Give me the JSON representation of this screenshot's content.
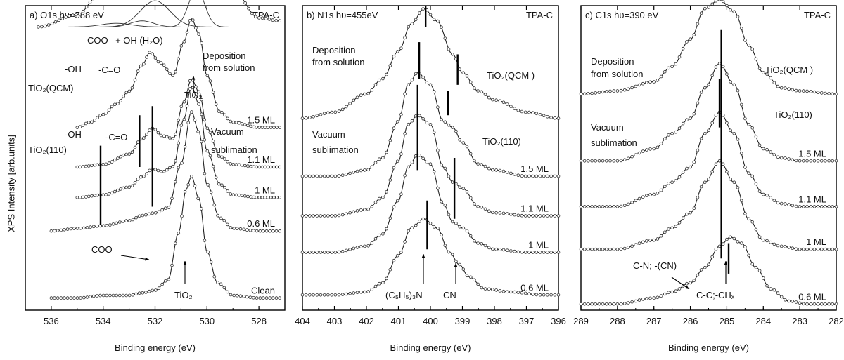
{
  "figure": {
    "ylabel": "XPS Intensity [arb.units]"
  },
  "chart_data": [
    {
      "type": "line",
      "panel_label": "a) O1s hυ=588 eV",
      "sample": "TPA-C",
      "xlabel": "Binding energy (eV)",
      "xlim": [
        537,
        527
      ],
      "xticks": [
        "536",
        "534",
        "532",
        "530",
        "528"
      ],
      "grid": false,
      "series": [
        {
          "name": "TiO2(QCM)",
          "label": "TiO2(QCM)",
          "offset": 0.93,
          "scale": 1.0,
          "x": [
            536.5,
            535,
            534.2,
            533.5,
            533.0,
            532.5,
            532.0,
            531.5,
            531.0,
            530.6,
            530.3,
            530.0,
            529.6,
            529.0,
            528.0,
            527.2
          ],
          "y": [
            0.0,
            0.04,
            0.1,
            0.18,
            0.27,
            0.37,
            0.44,
            0.45,
            0.5,
            0.64,
            0.66,
            0.58,
            0.38,
            0.12,
            0.03,
            0.02
          ]
        },
        {
          "name": "1.5 ML",
          "label": "1.5 ML",
          "offset": 0.6,
          "scale": 0.85,
          "x": [
            535.0,
            534.5,
            534.0,
            533.5,
            533.0,
            532.5,
            532.2,
            531.8,
            531.3,
            530.9,
            530.6,
            530.3,
            530.0,
            529.5,
            529.0,
            528.0,
            527.2
          ],
          "y": [
            0.0,
            0.02,
            0.05,
            0.09,
            0.14,
            0.24,
            0.29,
            0.25,
            0.2,
            0.33,
            0.42,
            0.36,
            0.2,
            0.06,
            0.02,
            0.0,
            0.0
          ]
        },
        {
          "name": "1.1 ML",
          "label": "1.1 ML",
          "offset": 0.47,
          "scale": 0.85,
          "x": [
            535.0,
            534.0,
            533.0,
            532.5,
            532.1,
            531.7,
            531.3,
            530.9,
            530.6,
            530.3,
            530.0,
            529.5,
            529.0,
            528.0,
            527.2
          ],
          "y": [
            0.0,
            0.01,
            0.05,
            0.11,
            0.15,
            0.12,
            0.11,
            0.25,
            0.34,
            0.29,
            0.15,
            0.04,
            0.01,
            0.0,
            0.0
          ]
        },
        {
          "name": "1 ML",
          "label": "1 ML",
          "offset": 0.37,
          "scale": 0.85,
          "x": [
            535.0,
            534.0,
            533.0,
            532.5,
            532.1,
            531.7,
            531.3,
            530.9,
            530.6,
            530.3,
            530.0,
            529.5,
            529.0,
            528.0,
            527.2
          ],
          "y": [
            0.0,
            0.01,
            0.04,
            0.08,
            0.11,
            0.1,
            0.12,
            0.3,
            0.43,
            0.36,
            0.18,
            0.05,
            0.01,
            0.0,
            0.0
          ]
        },
        {
          "name": "0.6 ML",
          "label": "0.6 ML",
          "offset": 0.26,
          "scale": 0.85,
          "x": [
            536.0,
            535.0,
            534.0,
            533.0,
            532.5,
            532.0,
            531.5,
            531.0,
            530.6,
            530.3,
            530.0,
            529.5,
            529.0,
            528.0,
            527.2
          ],
          "y": [
            0.0,
            0.01,
            0.02,
            0.04,
            0.06,
            0.07,
            0.09,
            0.26,
            0.46,
            0.38,
            0.18,
            0.05,
            0.01,
            0.0,
            0.0
          ]
        },
        {
          "name": "Clean",
          "label": "Clean",
          "offset": 0.04,
          "scale": 0.85,
          "x": [
            536.0,
            535.0,
            534.0,
            533.0,
            532.5,
            532.0,
            531.5,
            531.1,
            530.8,
            530.6,
            530.3,
            530.0,
            529.6,
            529.0,
            528.0,
            527.2
          ],
          "y": [
            0.0,
            0.0,
            0.01,
            0.01,
            0.02,
            0.03,
            0.07,
            0.25,
            0.42,
            0.47,
            0.38,
            0.18,
            0.06,
            0.01,
            0.0,
            0.0
          ]
        }
      ],
      "components": [
        {
          "name": "TiO2",
          "center": 530.4,
          "height": 0.62,
          "width": 0.7
        },
        {
          "name": "COO- + OH (H2O)",
          "center": 532.0,
          "height": 0.43,
          "width": 1.3
        },
        {
          "name": "-C=O",
          "center": 532.5,
          "height": 0.1,
          "width": 1.0
        },
        {
          "name": "-OH",
          "center": 533.5,
          "height": 0.06,
          "width": 1.3
        }
      ],
      "vlines": [
        534.1,
        532.6,
        532.1
      ],
      "annotations": [
        "Deposition from solution",
        "COO⁻ + OH (H₂O)",
        "-OH",
        "-C=O",
        "TiO₂(QCM)",
        "TiO₂",
        "-OH",
        "-C=O",
        "TiO₂(110)",
        "Vacuum sublimation",
        "COO⁻",
        "TiO₂"
      ]
    },
    {
      "type": "line",
      "panel_label": "b) N1s hυ=455eV",
      "sample": "TPA-C",
      "xlabel": "Binding energy (eV)",
      "xlim": [
        404,
        396
      ],
      "xticks": [
        "404",
        "403",
        "402",
        "401",
        "400",
        "399",
        "398",
        "397",
        "396"
      ],
      "grid": false,
      "series": [
        {
          "name": "TiO2(QCM )",
          "label": "TiO₂(QCM )",
          "offset": 0.63,
          "scale": 1.0,
          "x": [
            404,
            403,
            402,
            401.5,
            401.0,
            400.6,
            400.2,
            399.8,
            399.3,
            399.0,
            398.5,
            398.0,
            397.0,
            396.0
          ],
          "y": [
            0.0,
            0.02,
            0.08,
            0.13,
            0.22,
            0.31,
            0.36,
            0.32,
            0.21,
            0.15,
            0.09,
            0.06,
            0.02,
            0.0
          ]
        },
        {
          "name": "1.5 ML",
          "label": "1.5 ML",
          "offset": 0.44,
          "scale": 1.0,
          "x": [
            404,
            403,
            402,
            401.5,
            401.0,
            400.7,
            400.4,
            400.0,
            399.6,
            399.3,
            399.0,
            398.5,
            398.0,
            397.0,
            396.0
          ],
          "y": [
            0.0,
            0.0,
            0.02,
            0.06,
            0.18,
            0.3,
            0.34,
            0.3,
            0.18,
            0.16,
            0.11,
            0.04,
            0.02,
            0.0,
            0.0
          ]
        },
        {
          "name": "1.1 ML",
          "label": "1.1 ML",
          "offset": 0.31,
          "scale": 1.0,
          "x": [
            404,
            403,
            402,
            401.5,
            401.0,
            400.7,
            400.4,
            400.0,
            399.6,
            399.3,
            399.0,
            398.5,
            398.0,
            397.0,
            396.0
          ],
          "y": [
            0.0,
            0.0,
            0.02,
            0.06,
            0.18,
            0.3,
            0.33,
            0.3,
            0.16,
            0.11,
            0.09,
            0.03,
            0.01,
            0.0,
            0.0
          ]
        },
        {
          "name": "1 ML",
          "label": "1 ML",
          "offset": 0.19,
          "scale": 1.0,
          "x": [
            404,
            403,
            402,
            401.5,
            401.0,
            400.7,
            400.4,
            400.0,
            399.6,
            399.3,
            399.0,
            398.5,
            398.0,
            397.0,
            396.0
          ],
          "y": [
            0.0,
            0.0,
            0.02,
            0.06,
            0.17,
            0.28,
            0.32,
            0.29,
            0.16,
            0.1,
            0.08,
            0.03,
            0.01,
            0.0,
            0.0
          ]
        },
        {
          "name": "0.6 ML",
          "label": "0.6 ML",
          "offset": 0.05,
          "scale": 1.0,
          "x": [
            404,
            403,
            402,
            401.5,
            401.0,
            400.6,
            400.2,
            399.8,
            399.4,
            399.1,
            398.8,
            398.3,
            397.5,
            396.5,
            396.0
          ],
          "y": [
            0.0,
            0.0,
            0.01,
            0.04,
            0.13,
            0.22,
            0.25,
            0.22,
            0.14,
            0.1,
            0.06,
            0.02,
            0.01,
            0.0,
            0.0
          ]
        }
      ],
      "vlines": [
        400.1,
        399.1,
        400.3,
        399.4,
        399.2
      ],
      "annotations": [
        "Deposition from solution",
        "TiO₂(QCM )",
        "Vacuum sublimation",
        "TiO₂(110)",
        "(C₅H₅)₃N",
        "CN"
      ]
    },
    {
      "type": "line",
      "panel_label": "c) C1s hυ=390 eV",
      "sample": "TPA-C",
      "xlabel": "Binding energy (eV)",
      "xlim": [
        289,
        282
      ],
      "xticks": [
        "289",
        "288",
        "287",
        "286",
        "285",
        "284",
        "283",
        "282"
      ],
      "grid": false,
      "series": [
        {
          "name": "TiO2(QCM )",
          "label": "TiO₂(QCM )",
          "offset": 0.71,
          "scale": 1.0,
          "x": [
            289.0,
            288.0,
            287.0,
            286.5,
            286.0,
            285.6,
            285.2,
            284.8,
            284.4,
            284.0,
            283.5,
            283.0,
            282.0
          ],
          "y": [
            0.0,
            0.01,
            0.04,
            0.09,
            0.18,
            0.28,
            0.31,
            0.27,
            0.16,
            0.07,
            0.02,
            0.01,
            0.0
          ]
        },
        {
          "name": "1.5 ML",
          "label": "1.5 ML",
          "offset": 0.49,
          "scale": 1.0,
          "x": [
            289.0,
            288.0,
            287.0,
            286.5,
            286.0,
            285.6,
            285.2,
            284.8,
            284.4,
            284.0,
            283.5,
            283.0,
            282.0
          ],
          "y": [
            0.0,
            0.0,
            0.04,
            0.09,
            0.14,
            0.24,
            0.32,
            0.25,
            0.12,
            0.04,
            0.01,
            0.0,
            0.0
          ]
        },
        {
          "name": "1.1 ML",
          "label": "1.1 ML",
          "offset": 0.34,
          "scale": 1.0,
          "x": [
            289.0,
            288.0,
            287.0,
            286.5,
            286.0,
            285.6,
            285.2,
            284.8,
            284.4,
            284.0,
            283.5,
            283.0,
            282.0
          ],
          "y": [
            0.0,
            0.0,
            0.04,
            0.08,
            0.13,
            0.24,
            0.31,
            0.24,
            0.11,
            0.04,
            0.01,
            0.0,
            0.0
          ]
        },
        {
          "name": "1 ML",
          "label": "1 ML",
          "offset": 0.2,
          "scale": 1.0,
          "x": [
            289.0,
            288.0,
            287.0,
            286.5,
            286.0,
            285.6,
            285.2,
            284.8,
            284.4,
            284.0,
            283.5,
            283.0,
            282.0
          ],
          "y": [
            0.0,
            0.0,
            0.03,
            0.07,
            0.12,
            0.22,
            0.29,
            0.22,
            0.1,
            0.03,
            0.01,
            0.0,
            0.0
          ]
        },
        {
          "name": "0.6 ML",
          "label": "0.6 ML",
          "offset": 0.02,
          "scale": 1.0,
          "x": [
            289.0,
            288.0,
            287.0,
            286.5,
            286.0,
            285.6,
            285.2,
            284.9,
            284.6,
            284.2,
            283.8,
            283.3,
            282.8,
            282.0
          ],
          "y": [
            0.0,
            0.0,
            0.02,
            0.04,
            0.07,
            0.12,
            0.19,
            0.22,
            0.2,
            0.12,
            0.05,
            0.01,
            0.0,
            0.0
          ]
        }
      ],
      "vlines": [
        285.15,
        285.2,
        284.95
      ],
      "annotations": [
        "Deposition from solution",
        "TiO₂(QCM )",
        "TiO₂(110)",
        "Vacuum sublimation",
        "C-N; -(CN)",
        "C-C;-CHₓ"
      ]
    }
  ]
}
